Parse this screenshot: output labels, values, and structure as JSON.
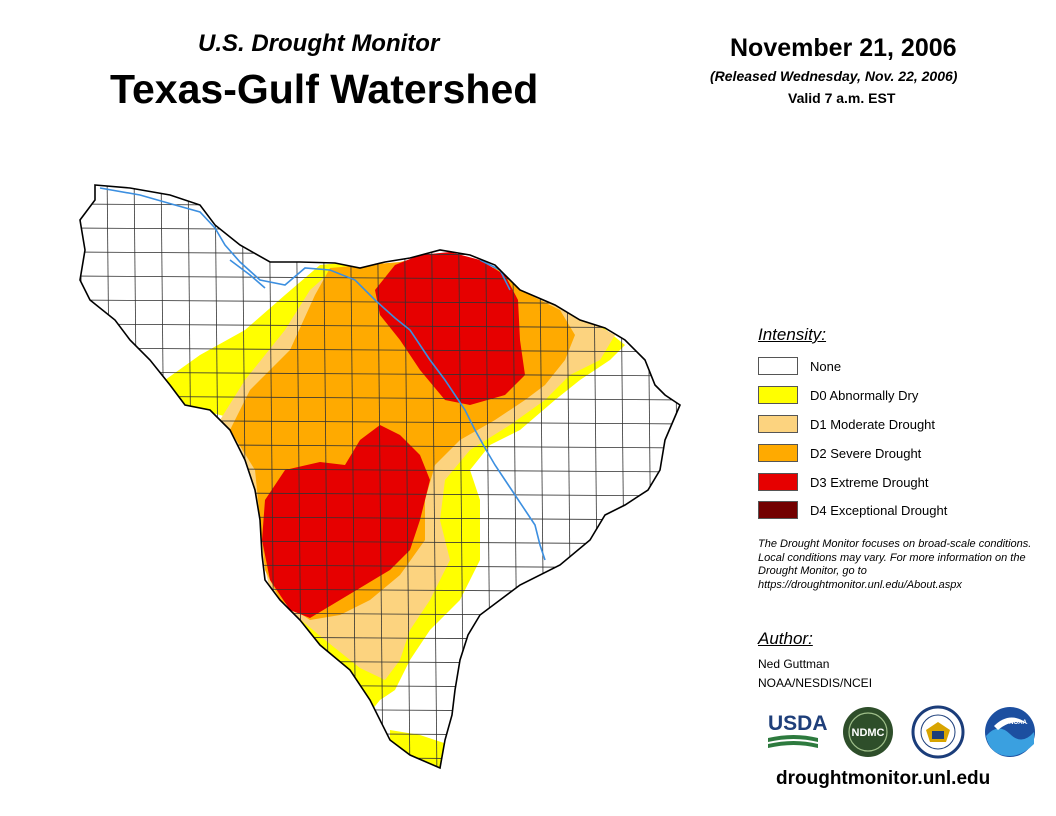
{
  "header": {
    "subtitle": "U.S. Drought Monitor",
    "title": "Texas-Gulf Watershed",
    "date": "November 21, 2006",
    "released": "(Released Wednesday, Nov. 22, 2006)",
    "valid": "Valid 7 a.m. EST"
  },
  "legend": {
    "heading": "Intensity:",
    "items": [
      {
        "label": "None",
        "color": "#ffffff"
      },
      {
        "label": "D0 Abnormally Dry",
        "color": "#ffff00"
      },
      {
        "label": "D1 Moderate Drought",
        "color": "#fcd37f"
      },
      {
        "label": "D2 Severe Drought",
        "color": "#ffaa00"
      },
      {
        "label": "D3 Extreme Drought",
        "color": "#e60000"
      },
      {
        "label": "D4 Exceptional Drought",
        "color": "#730000"
      }
    ]
  },
  "disclaimer": "The Drought Monitor focuses on broad-scale conditions. Local conditions may vary. For more information on the Drought Monitor, go to https://droughtmonitor.unl.edu/About.aspx",
  "author": {
    "heading": "Author:",
    "name": "Ned Guttman",
    "org": "NOAA/NESDIS/NCEI"
  },
  "logos": {
    "usda": "USDA",
    "ndmc": "NDMC",
    "noaa": "NOAA"
  },
  "footer_url": "droughtmonitor.unl.edu",
  "colors": {
    "river": "#3c8fe0",
    "county_lines": "#333333"
  }
}
